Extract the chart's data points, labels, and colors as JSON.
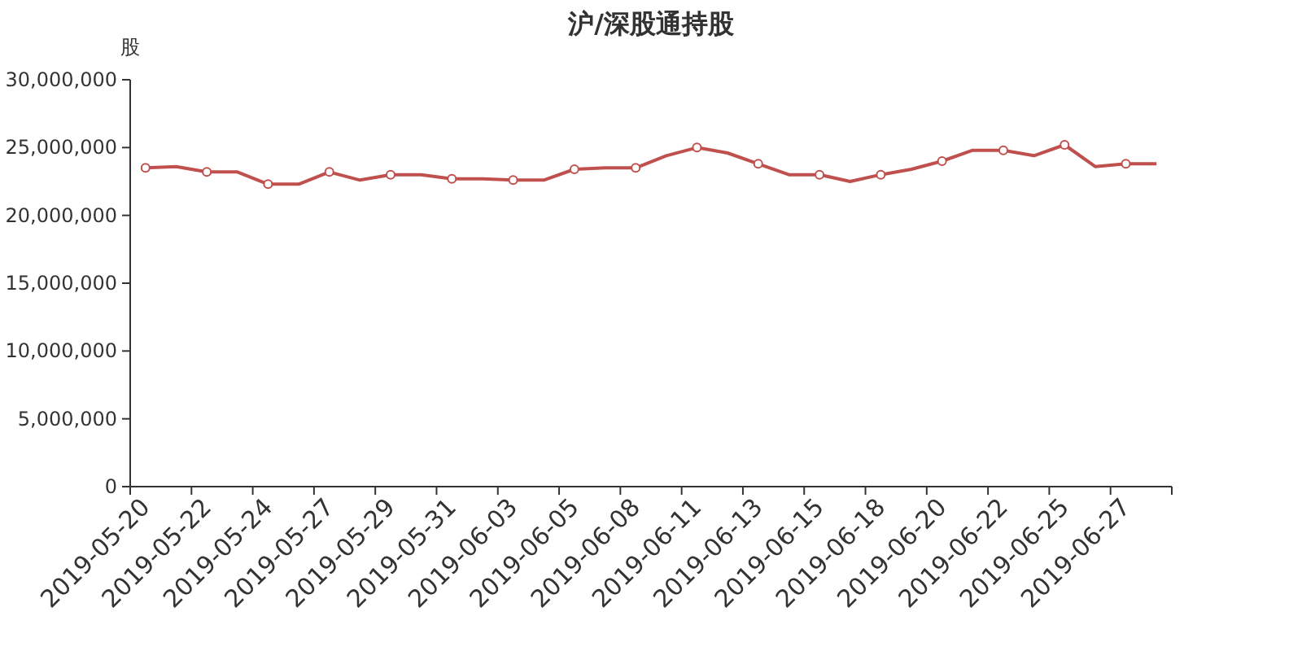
{
  "chart_data": {
    "type": "line",
    "title": "沪/深股通持股",
    "ylabel": "股",
    "categories": [
      "2019-05-20",
      null,
      "2019-05-22",
      null,
      "2019-05-24",
      null,
      "2019-05-27",
      null,
      "2019-05-29",
      null,
      "2019-05-31",
      null,
      "2019-06-03",
      null,
      "2019-06-05",
      null,
      "2019-06-08",
      null,
      "2019-06-11",
      null,
      "2019-06-13",
      null,
      "2019-06-15",
      null,
      "2019-06-18",
      null,
      "2019-06-20",
      null,
      "2019-06-22",
      null,
      "2019-06-25",
      null,
      "2019-06-27",
      null
    ],
    "series": [
      {
        "color": "#c0504d",
        "values": [
          23500000,
          23600000,
          23200000,
          23200000,
          22300000,
          22300000,
          23200000,
          22600000,
          23000000,
          23000000,
          22700000,
          22700000,
          22600000,
          22600000,
          23400000,
          23500000,
          23500000,
          24400000,
          25000000,
          24600000,
          23800000,
          23000000,
          23000000,
          22500000,
          23000000,
          23400000,
          24000000,
          24800000,
          24800000,
          24400000,
          25200000,
          23600000,
          23800000,
          23800000
        ]
      }
    ],
    "ylim": [
      0,
      30000000
    ],
    "yticks": [
      {
        "value": 0,
        "label": "0"
      },
      {
        "value": 5000000,
        "label": "5,000,000"
      },
      {
        "value": 10000000,
        "label": "10,000,000"
      },
      {
        "value": 15000000,
        "label": "15,000,000"
      },
      {
        "value": 20000000,
        "label": "20,000,000"
      },
      {
        "value": 25000000,
        "label": "25,000,000"
      },
      {
        "value": 30000000,
        "label": "30,000,000"
      }
    ],
    "marker": "circle",
    "line_style": "solid",
    "grid": false
  }
}
